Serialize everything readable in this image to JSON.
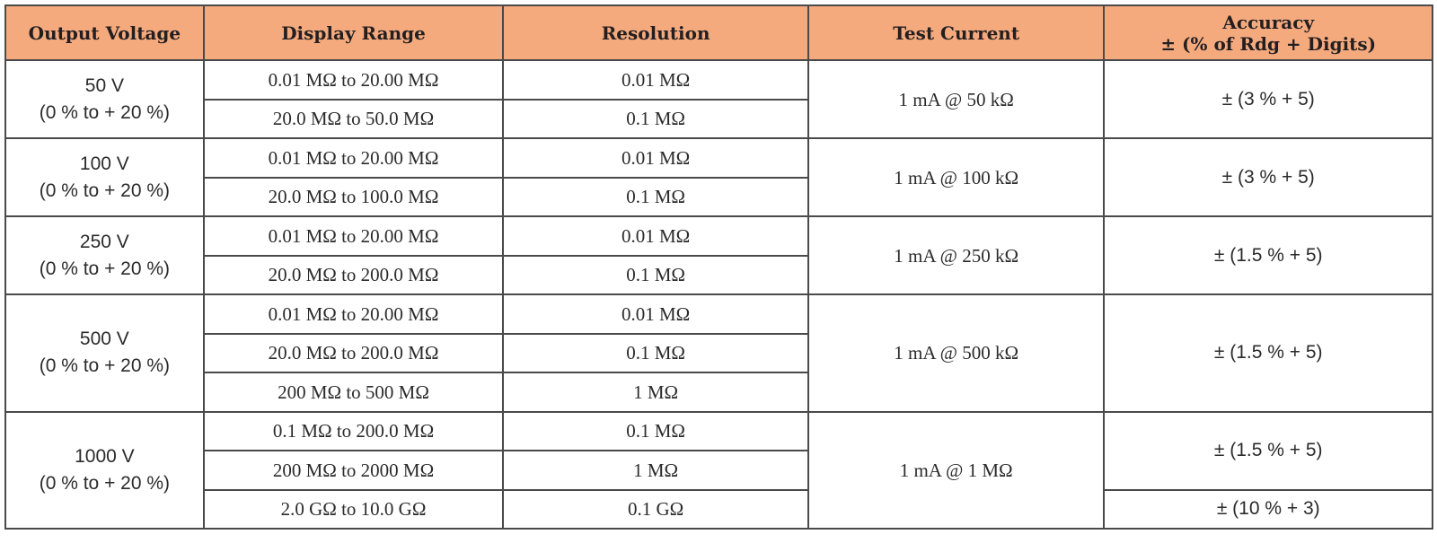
{
  "header_color": "#f5aa7e",
  "headers": [
    "Output Voltage",
    "Display Range",
    "Resolution",
    "Test Current",
    "Accuracy",
    "± (% of Rdg + Digits)"
  ],
  "groups": [
    {
      "voltage": "50 V",
      "tolerance": "(0 % to + 20 %)",
      "test_current": "1 mA @ 50 kΩ",
      "ranges": [
        {
          "display": "0.01 MΩ to 20.00 MΩ",
          "resolution": "0.01 MΩ"
        },
        {
          "display": "20.0 MΩ to 50.0 MΩ",
          "resolution": "0.1 MΩ"
        }
      ],
      "accuracy": [
        {
          "text": "± (3 % + 5)",
          "rows": 2
        }
      ]
    },
    {
      "voltage": "100 V",
      "tolerance": "(0 % to + 20 %)",
      "test_current": "1 mA @ 100 kΩ",
      "ranges": [
        {
          "display": "0.01 MΩ to 20.00 MΩ",
          "resolution": "0.01 MΩ"
        },
        {
          "display": "20.0 MΩ to 100.0 MΩ",
          "resolution": "0.1 MΩ"
        }
      ],
      "accuracy": [
        {
          "text": "± (3 % + 5)",
          "rows": 2
        }
      ]
    },
    {
      "voltage": "250 V",
      "tolerance": "(0 % to + 20 %)",
      "test_current": "1 mA @ 250 kΩ",
      "ranges": [
        {
          "display": "0.01 MΩ to 20.00 MΩ",
          "resolution": "0.01 MΩ"
        },
        {
          "display": "20.0 MΩ to 200.0 MΩ",
          "resolution": "0.1 MΩ"
        }
      ],
      "accuracy": [
        {
          "text": "± (1.5 % + 5)",
          "rows": 2
        }
      ]
    },
    {
      "voltage": "500 V",
      "tolerance": "(0 % to + 20 %)",
      "test_current": "1 mA @ 500 kΩ",
      "ranges": [
        {
          "display": "0.01 MΩ to 20.00 MΩ",
          "resolution": "0.01 MΩ"
        },
        {
          "display": "20.0 MΩ to 200.0 MΩ",
          "resolution": "0.1 MΩ"
        },
        {
          "display": "200 MΩ to 500 MΩ",
          "resolution": "1 MΩ"
        }
      ],
      "accuracy": [
        {
          "text": "± (1.5 % + 5)",
          "rows": 3
        }
      ]
    },
    {
      "voltage": "1000 V",
      "tolerance": "(0 % to + 20 %)",
      "test_current": "1 mA @ 1 MΩ",
      "ranges": [
        {
          "display": "0.1 MΩ to 200.0 MΩ",
          "resolution": "0.1 MΩ"
        },
        {
          "display": "200 MΩ to 2000 MΩ",
          "resolution": "1 MΩ"
        },
        {
          "display": "2.0 GΩ to 10.0 GΩ",
          "resolution": "0.1 GΩ"
        }
      ],
      "accuracy": [
        {
          "text": "± (1.5 % + 5)",
          "rows": 2
        },
        {
          "text": "± (10 % + 3)",
          "rows": 1
        }
      ]
    }
  ]
}
